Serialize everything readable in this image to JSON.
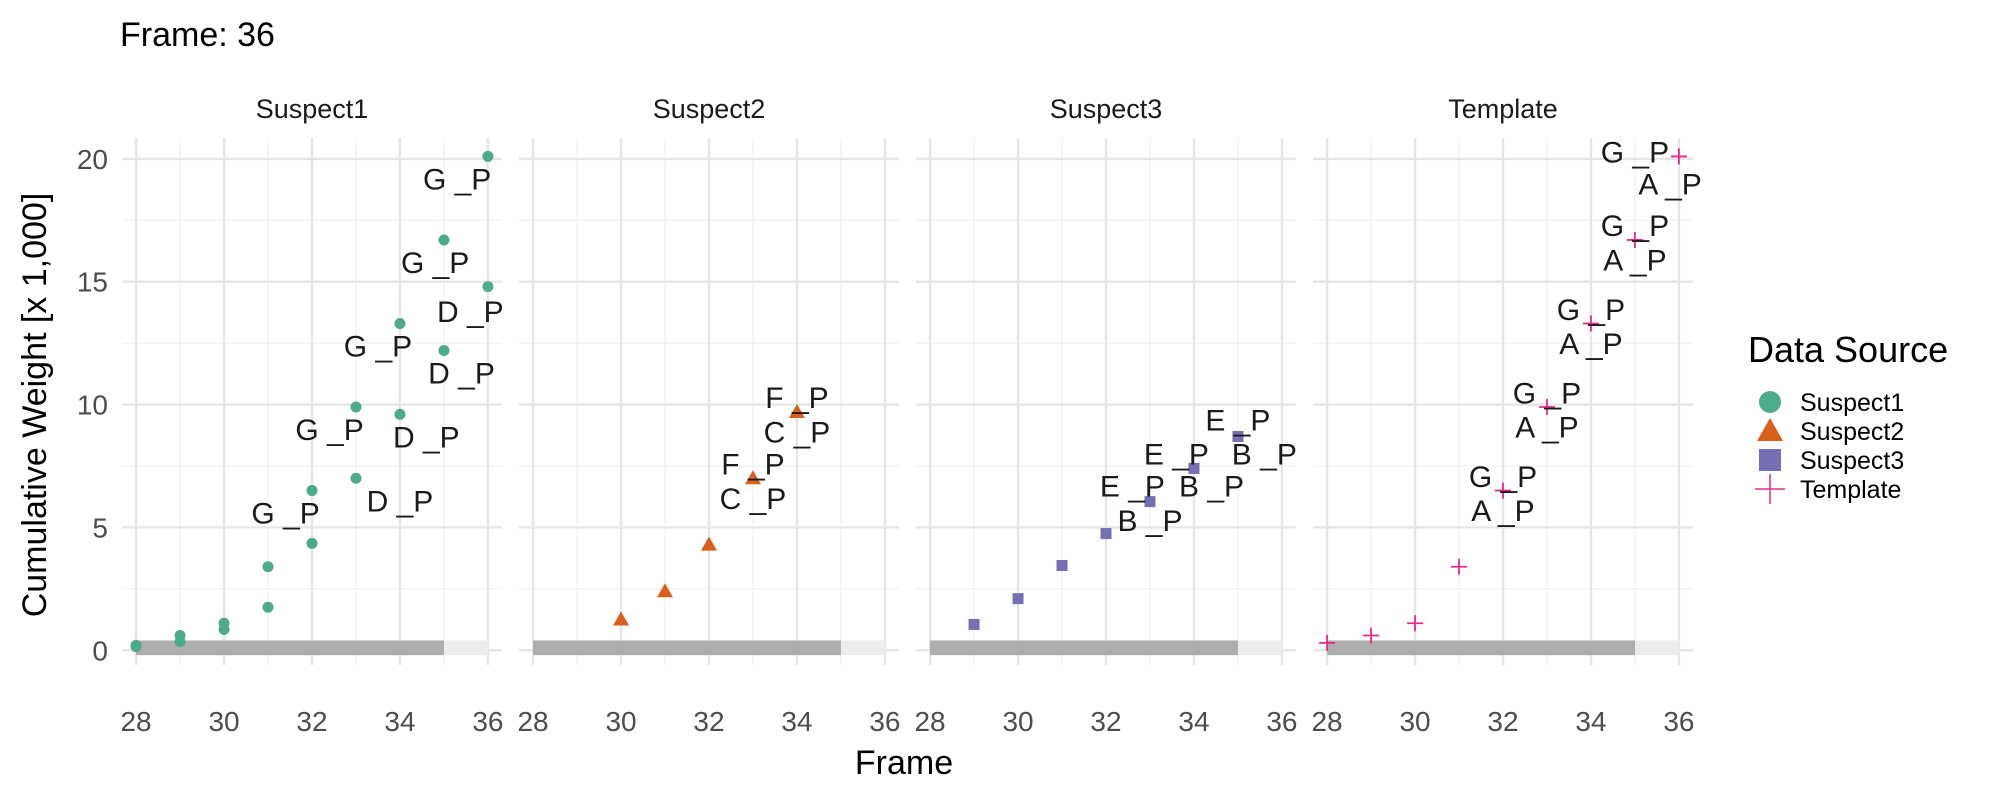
{
  "chart_data": {
    "type": "scatter",
    "title": "Frame: 36",
    "xlabel": "Frame",
    "ylabel": "Cumulative Weight [x 1,000]",
    "xlim": [
      28,
      36
    ],
    "ylim": [
      0,
      20.5
    ],
    "x_ticks": [
      28,
      30,
      32,
      34,
      36
    ],
    "x_tick_labels": [
      "28",
      "30",
      "32",
      "34",
      "36"
    ],
    "y_ticks": [
      0,
      5,
      10,
      15,
      20
    ],
    "y_tick_labels": [
      "0",
      "5",
      "10",
      "15",
      "20"
    ],
    "progress_bar": {
      "from": 28,
      "current": 35,
      "to": 36
    },
    "grid": true,
    "legend": {
      "title": "Data Source",
      "position": "right",
      "entries": [
        {
          "label": "Suspect1",
          "color": "#4daa8a",
          "shape": "circle"
        },
        {
          "label": "Suspect2",
          "color": "#d95f1c",
          "shape": "triangle"
        },
        {
          "label": "Suspect3",
          "color": "#7570b3",
          "shape": "square"
        },
        {
          "label": "Template",
          "color": "#e7298a",
          "shape": "plus"
        }
      ]
    },
    "panels": [
      {
        "name": "Suspect1",
        "color": "#4daa8a",
        "shape": "circle",
        "points": [
          {
            "x": 28,
            "y": 0.2
          },
          {
            "x": 28,
            "y": 0.15
          },
          {
            "x": 29,
            "y": 0.6
          },
          {
            "x": 29,
            "y": 0.35
          },
          {
            "x": 30,
            "y": 1.1
          },
          {
            "x": 30,
            "y": 0.85
          },
          {
            "x": 31,
            "y": 3.4
          },
          {
            "x": 31,
            "y": 1.75
          },
          {
            "x": 32,
            "y": 6.5
          },
          {
            "x": 32,
            "y": 4.35
          },
          {
            "x": 33,
            "y": 9.9
          },
          {
            "x": 33,
            "y": 7.0
          },
          {
            "x": 34,
            "y": 13.3
          },
          {
            "x": 34,
            "y": 9.6
          },
          {
            "x": 35,
            "y": 16.7
          },
          {
            "x": 35,
            "y": 12.2
          },
          {
            "x": 36,
            "y": 20.1
          },
          {
            "x": 36,
            "y": 14.8
          }
        ],
        "labels": [
          {
            "text": "G _P",
            "x": 31.4,
            "y": 5.6
          },
          {
            "text": "D _P",
            "x": 34.0,
            "y": 6.1
          },
          {
            "text": "G _P",
            "x": 32.4,
            "y": 9.0
          },
          {
            "text": "D _P",
            "x": 34.6,
            "y": 8.7
          },
          {
            "text": "G _P",
            "x": 33.5,
            "y": 12.4
          },
          {
            "text": "D _P",
            "x": 35.4,
            "y": 11.3
          },
          {
            "text": "G _P",
            "x": 34.8,
            "y": 15.8
          },
          {
            "text": "D _P",
            "x": 35.6,
            "y": 13.8
          },
          {
            "text": "G _P",
            "x": 35.3,
            "y": 19.2
          }
        ]
      },
      {
        "name": "Suspect2",
        "color": "#d95f1c",
        "shape": "triangle",
        "points": [
          {
            "x": 30,
            "y": 1.25
          },
          {
            "x": 31,
            "y": 2.4
          },
          {
            "x": 32,
            "y": 4.3
          },
          {
            "x": 33,
            "y": 7.0
          },
          {
            "x": 34,
            "y": 9.7
          }
        ],
        "labels": [
          {
            "text": "C _P",
            "x": 33.0,
            "y": 6.2
          },
          {
            "text": "F _P",
            "x": 33.0,
            "y": 7.6
          },
          {
            "text": "C _P",
            "x": 34.0,
            "y": 8.9
          },
          {
            "text": "F _P",
            "x": 34.0,
            "y": 10.3
          }
        ]
      },
      {
        "name": "Suspect3",
        "color": "#7570b3",
        "shape": "square",
        "points": [
          {
            "x": 29,
            "y": 1.05
          },
          {
            "x": 30,
            "y": 2.1
          },
          {
            "x": 31,
            "y": 3.45
          },
          {
            "x": 32,
            "y": 4.75
          },
          {
            "x": 33,
            "y": 6.05
          },
          {
            "x": 34,
            "y": 7.4
          },
          {
            "x": 35,
            "y": 8.7
          }
        ],
        "labels": [
          {
            "text": "B _P",
            "x": 33.0,
            "y": 5.3
          },
          {
            "text": "E _P",
            "x": 32.6,
            "y": 6.7
          },
          {
            "text": "B _P",
            "x": 34.4,
            "y": 6.7
          },
          {
            "text": "E _P",
            "x": 33.6,
            "y": 8.0
          },
          {
            "text": "B _P",
            "x": 35.6,
            "y": 8.0
          },
          {
            "text": "E _P",
            "x": 35.0,
            "y": 9.4
          }
        ]
      },
      {
        "name": "Template",
        "color": "#e7298a",
        "shape": "plus",
        "points": [
          {
            "x": 28,
            "y": 0.3
          },
          {
            "x": 29,
            "y": 0.6
          },
          {
            "x": 30,
            "y": 1.1
          },
          {
            "x": 31,
            "y": 3.4
          },
          {
            "x": 32,
            "y": 6.5
          },
          {
            "x": 33,
            "y": 9.9
          },
          {
            "x": 34,
            "y": 13.3
          },
          {
            "x": 35,
            "y": 16.7
          },
          {
            "x": 36,
            "y": 20.1
          }
        ],
        "labels": [
          {
            "text": "A _P",
            "x": 32.0,
            "y": 5.7
          },
          {
            "text": "G _P",
            "x": 32.0,
            "y": 7.1
          },
          {
            "text": "A _P",
            "x": 33.0,
            "y": 9.1
          },
          {
            "text": "G _P",
            "x": 33.0,
            "y": 10.5
          },
          {
            "text": "A _P",
            "x": 34.0,
            "y": 12.5
          },
          {
            "text": "G _P",
            "x": 34.0,
            "y": 13.9
          },
          {
            "text": "A _P",
            "x": 35.0,
            "y": 15.9
          },
          {
            "text": "G _P",
            "x": 35.0,
            "y": 17.3
          },
          {
            "text": "A _P",
            "x": 35.8,
            "y": 19.0
          },
          {
            "text": "G _P",
            "x": 35.0,
            "y": 20.3
          }
        ]
      }
    ]
  }
}
